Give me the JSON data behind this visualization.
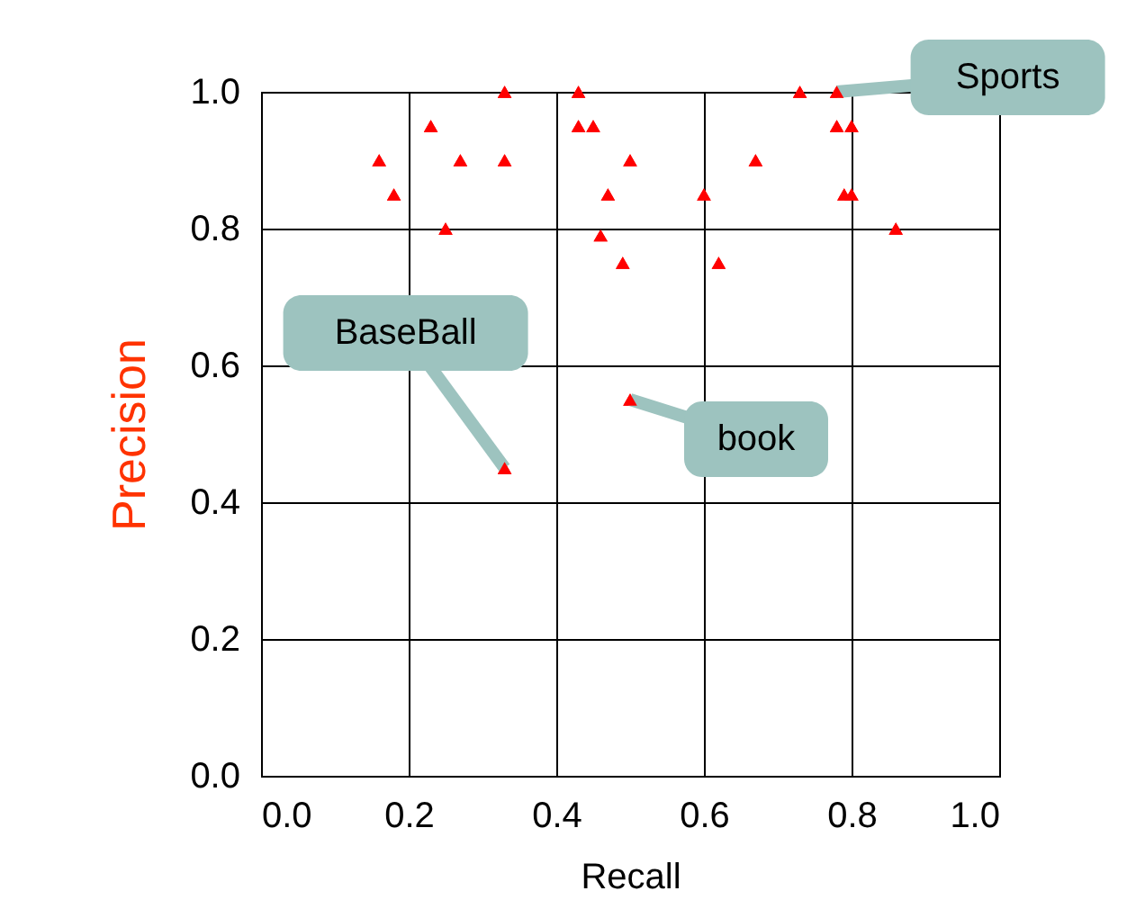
{
  "chart_data": {
    "type": "scatter",
    "xlabel": "Recall",
    "ylabel": "Precision",
    "x": [
      0.16,
      0.18,
      0.23,
      0.25,
      0.27,
      0.33,
      0.33,
      0.43,
      0.43,
      0.45,
      0.47,
      0.46,
      0.49,
      0.5,
      0.5,
      0.6,
      0.62,
      0.67,
      0.73,
      0.78,
      0.78,
      0.8,
      0.79,
      0.8,
      0.86,
      0.33
    ],
    "series": [
      {
        "color": "#ff0000",
        "values": [
          0.9,
          0.85,
          0.95,
          0.8,
          0.9,
          1.0,
          0.9,
          1.0,
          0.95,
          0.95,
          0.85,
          0.79,
          0.75,
          0.9,
          0.55,
          0.85,
          0.75,
          0.9,
          1.0,
          1.0,
          0.95,
          0.95,
          0.85,
          0.85,
          0.8,
          0.45
        ]
      }
    ],
    "xlim": [
      0,
      1
    ],
    "ylim": [
      0,
      1
    ],
    "xticks": [
      {
        "value": 0,
        "label": "0.0"
      },
      0.2,
      0.4,
      0.6,
      0.8,
      {
        "value": 1,
        "label": "1.0"
      }
    ],
    "yticks": [
      {
        "value": 0,
        "label": "0.0"
      },
      0.2,
      0.4,
      0.6,
      0.8,
      {
        "value": 1,
        "label": "1.0"
      }
    ],
    "grid": true,
    "marker": "triangle",
    "annotations": [
      {
        "text": "Sports",
        "x": 0.78,
        "y": 1.0
      },
      {
        "text": "BaseBall",
        "x": 0.33,
        "y": 0.45
      },
      {
        "text": "book",
        "x": 0.5,
        "y": 0.55
      }
    ]
  }
}
